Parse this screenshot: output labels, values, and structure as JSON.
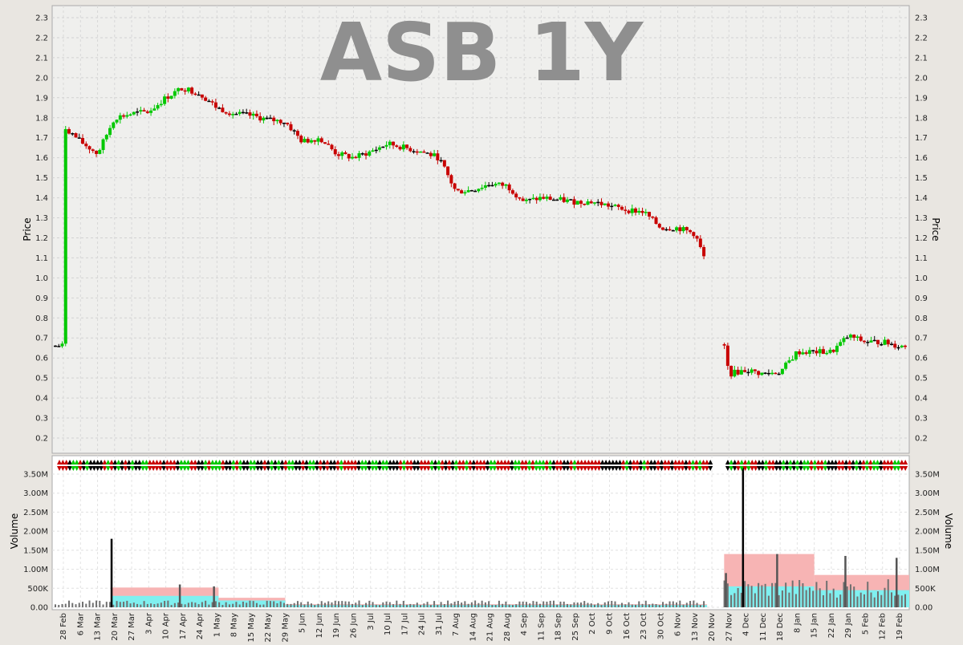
{
  "chart_data": [
    {
      "type": "candlestick",
      "title": "ASB 1Y",
      "ylabel": "Price",
      "ylim": [
        0.1,
        2.35
      ],
      "y_ticks": [
        "0.2",
        "0.3",
        "0.4",
        "0.5",
        "0.6",
        "0.7",
        "0.8",
        "0.9",
        "1.0",
        "1.1",
        "1.2",
        "1.3",
        "1.4",
        "1.5",
        "1.6",
        "1.7",
        "1.8",
        "1.9",
        "2.0",
        "2.1",
        "2.2",
        "2.3"
      ],
      "x_ticks": [
        "28 Feb",
        "6 Mar",
        "13 Mar",
        "20 Mar",
        "27 Mar",
        "3 Apr",
        "10 Apr",
        "17 Apr",
        "24 Apr",
        "1 May",
        "8 May",
        "15 May",
        "22 May",
        "29 May",
        "5 Jun",
        "12 Jun",
        "19 Jun",
        "26 Jun",
        "3 Jul",
        "10 Jul",
        "17 Jul",
        "24 Jul",
        "31 Jul",
        "7 Aug",
        "14 Aug",
        "21 Aug",
        "28 Aug",
        "4 Sep",
        "11 Sep",
        "18 Sep",
        "25 Sep",
        "2 Oct",
        "9 Oct",
        "16 Oct",
        "23 Oct",
        "30 Oct",
        "6 Nov",
        "13 Nov",
        "20 Nov",
        "27 Nov",
        "4 Dec",
        "11 Dec",
        "18 Dec",
        "8 Jan",
        "15 Jan",
        "22 Jan",
        "29 Jan",
        "5 Feb",
        "12 Feb",
        "19 Feb"
      ],
      "grid": true,
      "colors": {
        "up": "#00c800",
        "down": "#c80000",
        "flat": "#000000"
      },
      "approx_close_path": [
        [
          "28 Feb",
          1.76
        ],
        [
          "6 Mar",
          1.68
        ],
        [
          "13 Mar",
          1.62
        ],
        [
          "20 Mar",
          1.8
        ],
        [
          "27 Mar",
          1.82
        ],
        [
          "3 Apr",
          1.83
        ],
        [
          "10 Apr",
          1.9
        ],
        [
          "17 Apr",
          1.95
        ],
        [
          "24 Apr",
          1.92
        ],
        [
          "1 May",
          1.85
        ],
        [
          "8 May",
          1.82
        ],
        [
          "15 May",
          1.81
        ],
        [
          "22 May",
          1.79
        ],
        [
          "29 May",
          1.78
        ],
        [
          "5 Jun",
          1.68
        ],
        [
          "12 Jun",
          1.7
        ],
        [
          "19 Jun",
          1.62
        ],
        [
          "26 Jun",
          1.6
        ],
        [
          "3 Jul",
          1.63
        ],
        [
          "10 Jul",
          1.67
        ],
        [
          "17 Jul",
          1.65
        ],
        [
          "24 Jul",
          1.63
        ],
        [
          "31 Jul",
          1.6
        ],
        [
          "7 Aug",
          1.43
        ],
        [
          "14 Aug",
          1.44
        ],
        [
          "21 Aug",
          1.47
        ],
        [
          "28 Aug",
          1.46
        ],
        [
          "4 Sep",
          1.38
        ],
        [
          "11 Sep",
          1.4
        ],
        [
          "18 Sep",
          1.39
        ],
        [
          "25 Sep",
          1.38
        ],
        [
          "2 Oct",
          1.38
        ],
        [
          "9 Oct",
          1.36
        ],
        [
          "16 Oct",
          1.34
        ],
        [
          "23 Oct",
          1.33
        ],
        [
          "30 Oct",
          1.25
        ],
        [
          "6 Nov",
          1.25
        ],
        [
          "13 Nov",
          1.22
        ],
        [
          "20 Nov",
          1.0
        ],
        [
          "27 Nov",
          0.52
        ],
        [
          "4 Dec",
          0.54
        ],
        [
          "11 Dec",
          0.52
        ],
        [
          "18 Dec",
          0.53
        ],
        [
          "8 Jan",
          0.63
        ],
        [
          "15 Jan",
          0.63
        ],
        [
          "22 Jan",
          0.63
        ],
        [
          "29 Jan",
          0.71
        ],
        [
          "5 Feb",
          0.68
        ],
        [
          "12 Feb",
          0.68
        ],
        [
          "19 Feb",
          0.66
        ]
      ]
    },
    {
      "type": "bar",
      "ylabel": "Volume",
      "ylim": [
        0,
        3800000
      ],
      "y_ticks": [
        "0.00",
        "500K",
        "1.00M",
        "1.50M",
        "2.00M",
        "2.50M",
        "3.00M",
        "3.50M"
      ],
      "x_ticks_same_as_price": true,
      "notable_volumes": [
        [
          "20 Mar",
          1800000
        ],
        [
          "17 Apr",
          600000
        ],
        [
          "1 May",
          550000
        ],
        [
          "27 Nov",
          900000
        ],
        [
          "4 Dec",
          3700000
        ],
        [
          "18 Dec",
          1400000
        ],
        [
          "29 Jan",
          1350000
        ],
        [
          "19 Feb",
          1300000
        ]
      ]
    }
  ]
}
